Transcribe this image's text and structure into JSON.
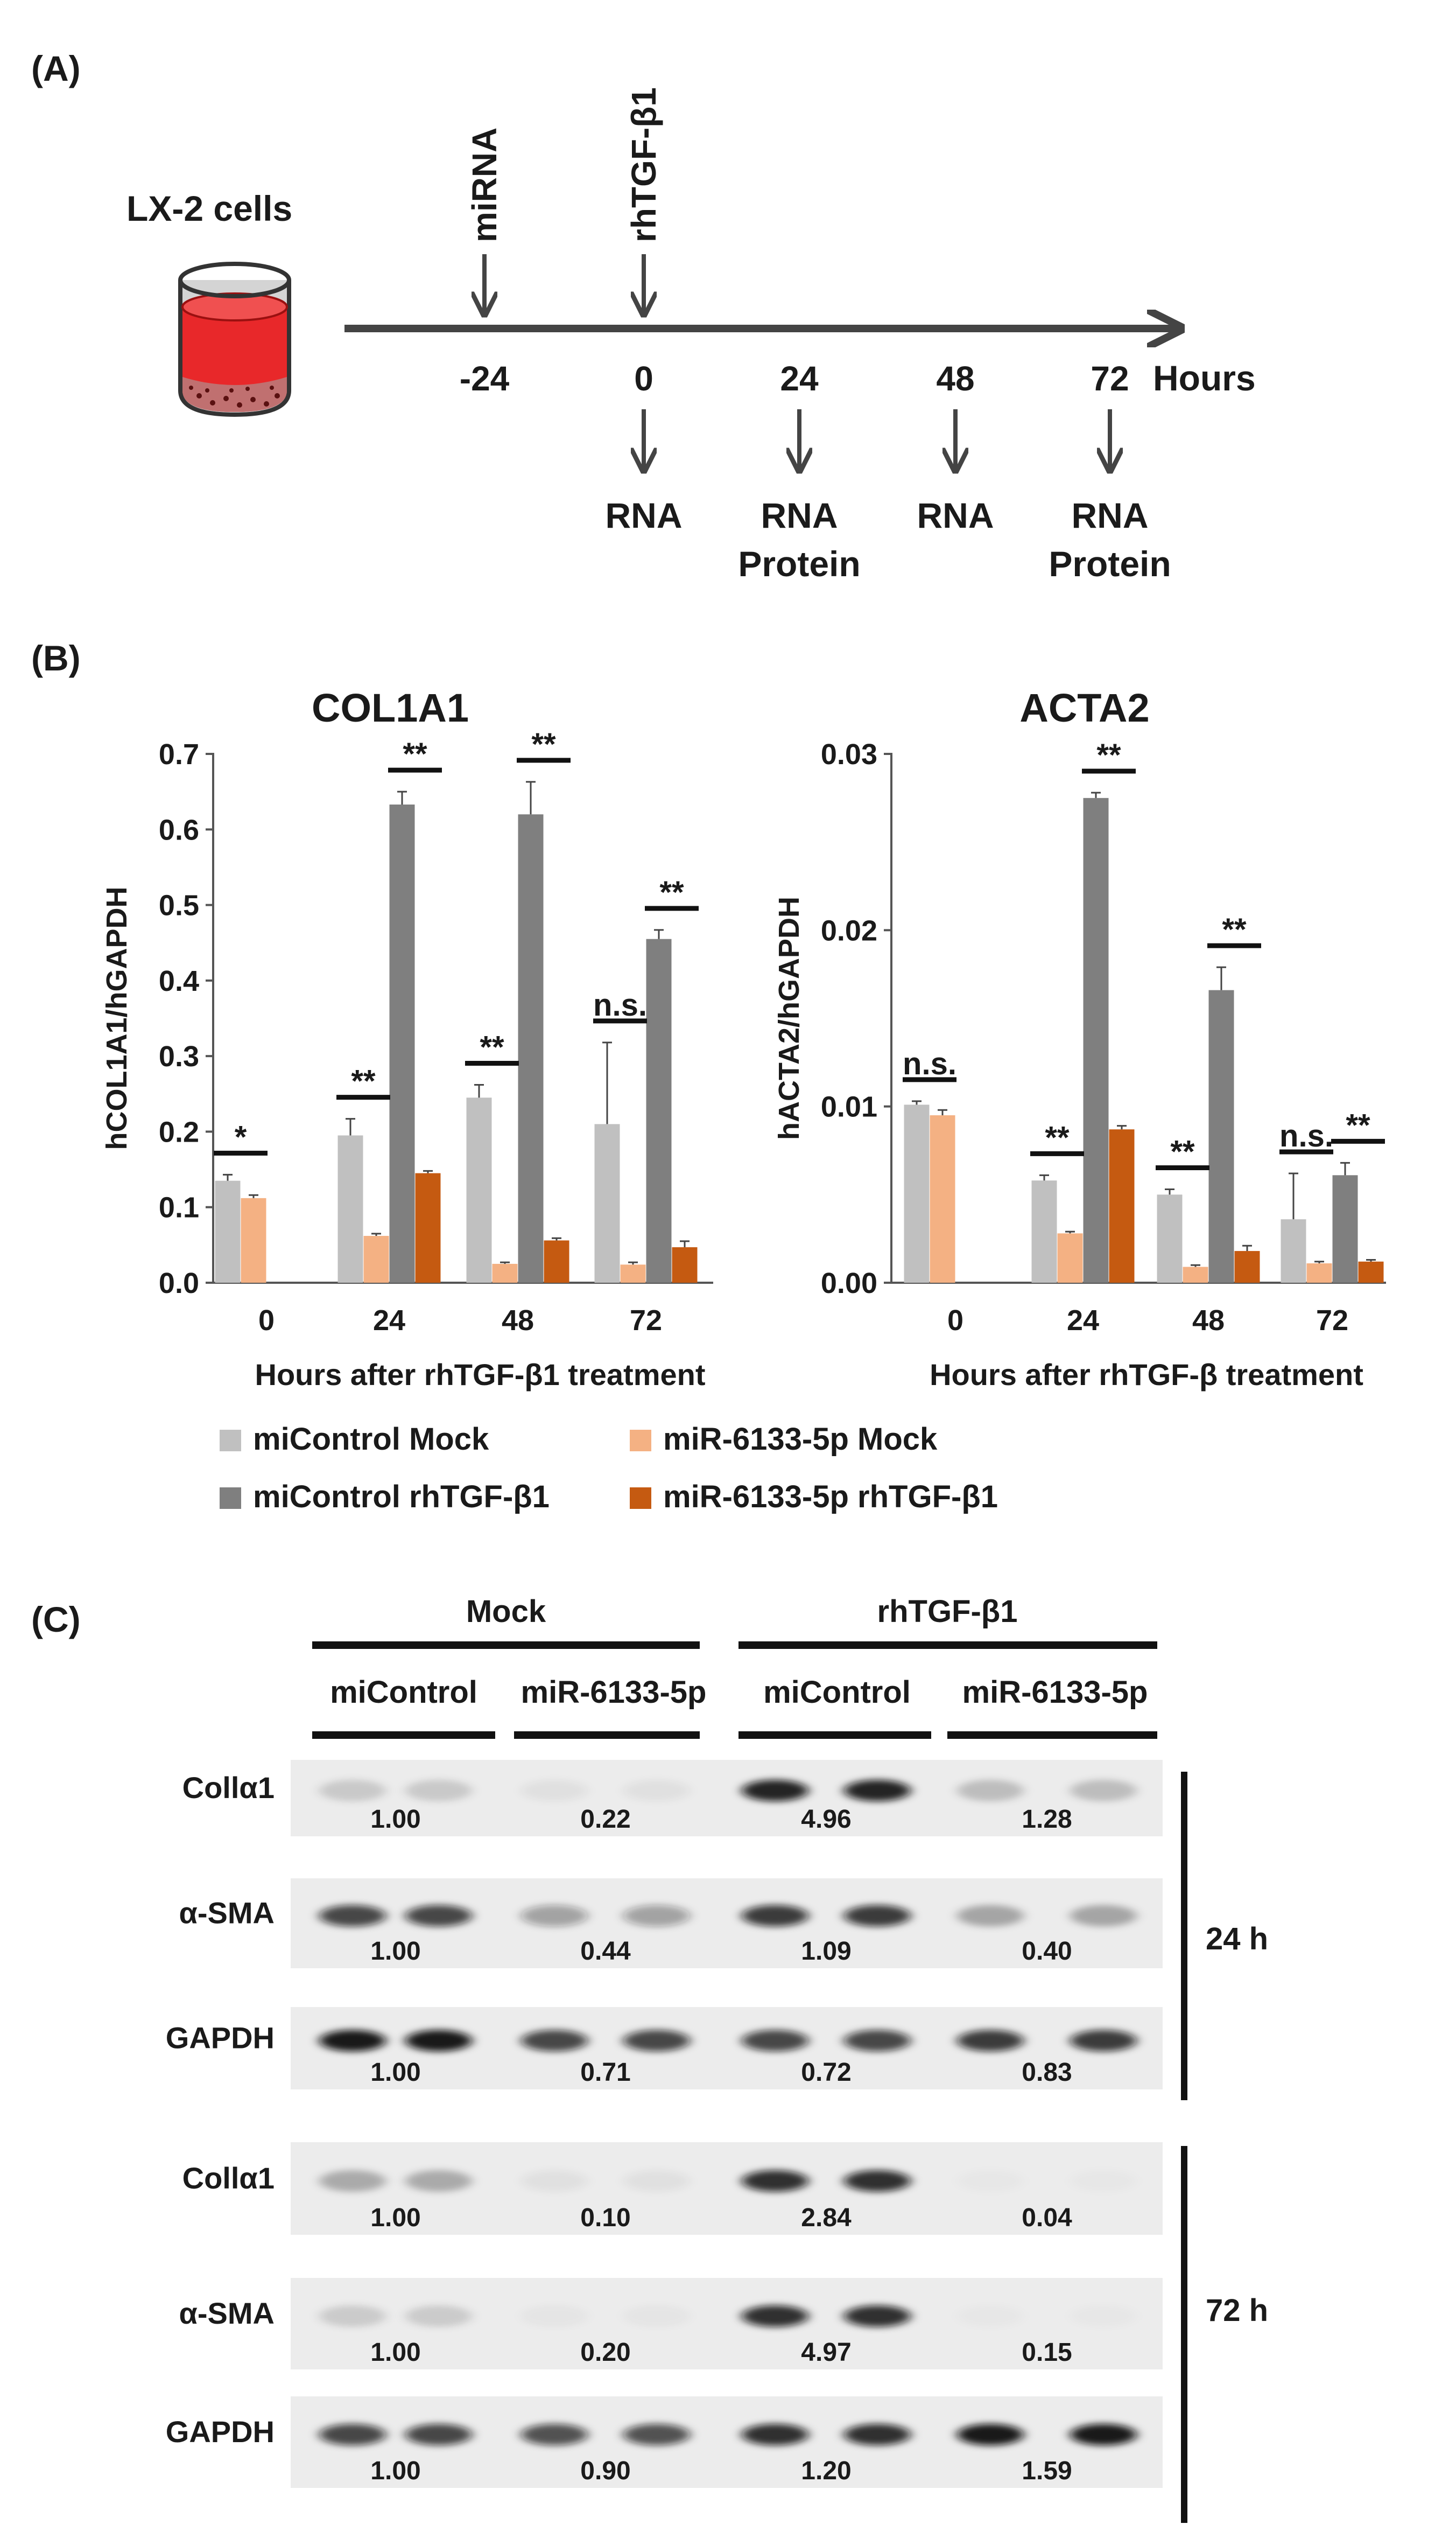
{
  "panel_a": {
    "label": "(A)",
    "cells_label": "LX-2 cells",
    "treatments": [
      {
        "name": "miRNA",
        "time": "-24"
      },
      {
        "name": "rhTGF-β1",
        "time": "0"
      }
    ],
    "timepoints": [
      "-24",
      "0",
      "24",
      "48",
      "72"
    ],
    "axis_unit": "Hours",
    "collections": [
      {
        "time": "0",
        "line1": "RNA",
        "line2": ""
      },
      {
        "time": "24",
        "line1": "RNA",
        "line2": "Protein"
      },
      {
        "time": "48",
        "line1": "RNA",
        "line2": ""
      },
      {
        "time": "72",
        "line1": "RNA",
        "line2": "Protein"
      }
    ],
    "colors": {
      "arrow": "#444444",
      "medium": "#e8282a",
      "cup": "#333333"
    }
  },
  "panel_b": {
    "label": "(B)",
    "legend": [
      {
        "name": "miControl Mock",
        "color": "#c0c0c0"
      },
      {
        "name": "miR-6133-5p Mock",
        "color": "#f4b183"
      },
      {
        "name": "miControl rhTGF-β1",
        "color": "#7f7f7f"
      },
      {
        "name": "miR-6133-5p rhTGF-β1",
        "color": "#c55a11"
      }
    ]
  },
  "chart_data": [
    {
      "type": "bar",
      "title": "COL1A1",
      "xlabel": "Hours after rhTGF-β1 treatment",
      "ylabel": "hCOL1A1/hGAPDH",
      "categories": [
        "0",
        "24",
        "48",
        "72"
      ],
      "ylim": [
        0,
        0.7
      ],
      "yticks": [
        "0.0",
        "0.1",
        "0.2",
        "0.3",
        "0.4",
        "0.5",
        "0.6",
        "0.7"
      ],
      "series": [
        {
          "name": "miControl Mock",
          "values": [
            0.135,
            0.195,
            0.245,
            0.21
          ],
          "errors": [
            0.008,
            0.022,
            0.017,
            0.108
          ]
        },
        {
          "name": "miR-6133-5p Mock",
          "values": [
            0.112,
            0.062,
            0.025,
            0.024
          ],
          "errors": [
            0.004,
            0.003,
            0.002,
            0.003
          ]
        },
        {
          "name": "miControl rhTGF-β1",
          "values": [
            null,
            0.633,
            0.62,
            0.455
          ],
          "errors": [
            null,
            0.017,
            0.043,
            0.012
          ]
        },
        {
          "name": "miR-6133-5p rhTGF-β1",
          "values": [
            null,
            0.145,
            0.056,
            0.047
          ],
          "errors": [
            null,
            0.003,
            0.003,
            0.008
          ]
        }
      ],
      "significance": [
        {
          "category": "0",
          "pair": "mock",
          "label": "*"
        },
        {
          "category": "24",
          "pair": "mock",
          "label": "**"
        },
        {
          "category": "24",
          "pair": "treated",
          "label": "**"
        },
        {
          "category": "48",
          "pair": "mock",
          "label": "**"
        },
        {
          "category": "48",
          "pair": "treated",
          "label": "**"
        },
        {
          "category": "72",
          "pair": "mock",
          "label": "n.s."
        },
        {
          "category": "72",
          "pair": "treated",
          "label": "**"
        }
      ]
    },
    {
      "type": "bar",
      "title": "ACTA2",
      "xlabel": "Hours after rhTGF-β treatment",
      "ylabel": "hACTA2/hGAPDH",
      "categories": [
        "0",
        "24",
        "48",
        "72"
      ],
      "ylim": [
        0,
        0.03
      ],
      "yticks": [
        "0.00",
        "0.01",
        "0.02",
        "0.03"
      ],
      "series": [
        {
          "name": "miControl Mock",
          "values": [
            0.0101,
            0.0058,
            0.005,
            0.0036
          ],
          "errors": [
            0.0002,
            0.0003,
            0.0003,
            0.0026
          ]
        },
        {
          "name": "miR-6133-5p Mock",
          "values": [
            0.0095,
            0.0028,
            0.0009,
            0.0011
          ],
          "errors": [
            0.0003,
            0.0001,
            0.0001,
            0.0001
          ]
        },
        {
          "name": "miControl rhTGF-β1",
          "values": [
            null,
            0.0275,
            0.0166,
            0.0061
          ],
          "errors": [
            null,
            0.0003,
            0.0013,
            0.0007
          ]
        },
        {
          "name": "miR-6133-5p rhTGF-β1",
          "values": [
            null,
            0.0087,
            0.0018,
            0.0012
          ],
          "errors": [
            null,
            0.0002,
            0.0003,
            0.0001
          ]
        }
      ],
      "significance": [
        {
          "category": "0",
          "pair": "mock",
          "label": "n.s."
        },
        {
          "category": "24",
          "pair": "mock",
          "label": "**"
        },
        {
          "category": "24",
          "pair": "treated",
          "label": "**"
        },
        {
          "category": "48",
          "pair": "mock",
          "label": "**"
        },
        {
          "category": "48",
          "pair": "treated",
          "label": "**"
        },
        {
          "category": "72",
          "pair": "mock",
          "label": "n.s."
        },
        {
          "category": "72",
          "pair": "treated",
          "label": "**"
        }
      ]
    }
  ],
  "panel_c": {
    "label": "(C)",
    "groups": [
      "Mock",
      "rhTGF-β1"
    ],
    "subgroups": [
      "miControl",
      "miR-6133-5p",
      "miControl",
      "miR-6133-5p"
    ],
    "time_labels": [
      "24 h",
      "72 h"
    ],
    "blots": [
      {
        "protein": "Collα1",
        "time": "24 h",
        "values": [
          "1.00",
          "0.22",
          "4.96",
          "1.28"
        ],
        "intensity": [
          0.15,
          0.05,
          0.9,
          0.2
        ]
      },
      {
        "protein": "α-SMA",
        "time": "24 h",
        "values": [
          "1.00",
          "0.44",
          "1.09",
          "0.40"
        ],
        "intensity": [
          0.75,
          0.35,
          0.8,
          0.3
        ]
      },
      {
        "protein": "GAPDH",
        "time": "24 h",
        "values": [
          "1.00",
          "0.71",
          "0.72",
          "0.83"
        ],
        "intensity": [
          0.95,
          0.75,
          0.75,
          0.8
        ]
      },
      {
        "protein": "Collα1",
        "time": "72 h",
        "values": [
          "1.00",
          "0.10",
          "2.84",
          "0.04"
        ],
        "intensity": [
          0.28,
          0.05,
          0.85,
          0.02
        ]
      },
      {
        "protein": "α-SMA",
        "time": "72 h",
        "values": [
          "1.00",
          "0.20",
          "4.97",
          "0.15"
        ],
        "intensity": [
          0.14,
          0.03,
          0.85,
          0.02
        ]
      },
      {
        "protein": "GAPDH",
        "time": "72 h",
        "values": [
          "1.00",
          "0.90",
          "1.20",
          "1.59"
        ],
        "intensity": [
          0.75,
          0.7,
          0.85,
          0.95
        ]
      }
    ]
  }
}
